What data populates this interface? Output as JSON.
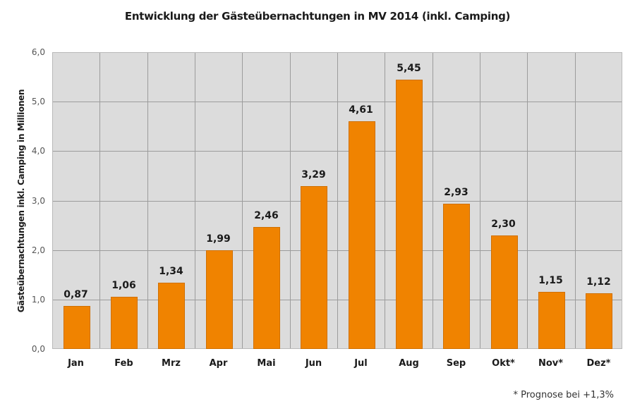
{
  "chart_data": {
    "type": "bar",
    "title": "Entwicklung der Gästeübernachtungen in MV 2014 (inkl. Camping)",
    "xlabel": "",
    "ylabel": "Gästeübernachtungen inkl. Camping in Millionen",
    "categories": [
      "Jan",
      "Feb",
      "Mrz",
      "Apr",
      "Mai",
      "Jun",
      "Jul",
      "Aug",
      "Sep",
      "Okt*",
      "Nov*",
      "Dez*"
    ],
    "values": [
      0.87,
      1.06,
      1.34,
      1.99,
      2.46,
      3.29,
      4.61,
      5.45,
      2.93,
      2.3,
      1.15,
      1.12
    ],
    "value_labels": [
      "0,87",
      "1,06",
      "1,34",
      "1,99",
      "2,46",
      "3,29",
      "4,61",
      "5,45",
      "2,93",
      "2,30",
      "1,15",
      "1,12"
    ],
    "ylim": [
      0,
      6
    ],
    "yticks": [
      0,
      1,
      2,
      3,
      4,
      5,
      6
    ],
    "ytick_labels": [
      "0,0",
      "1,0",
      "2,0",
      "3,0",
      "4,0",
      "5,0",
      "6,0"
    ],
    "grid": true,
    "legend": null,
    "annotations": [
      "* Prognose bei +1,3%"
    ],
    "colors": {
      "bar": "#f08300",
      "plot_background": "#dcdcdc",
      "grid": "#9c9c9c"
    }
  },
  "footnote": "* Prognose bei +1,3%"
}
